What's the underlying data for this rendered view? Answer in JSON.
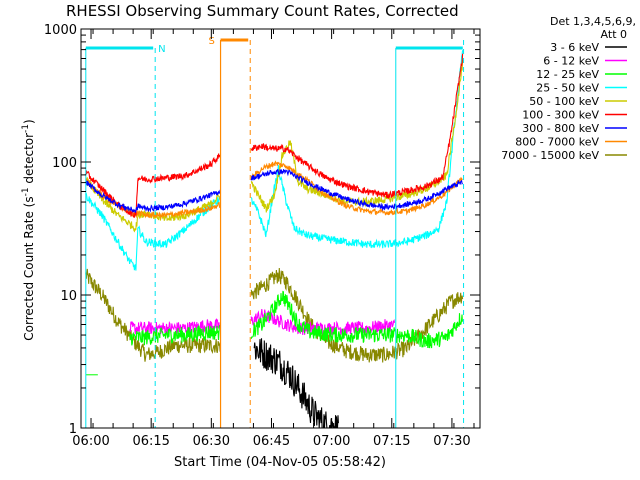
{
  "chart_data": {
    "type": "line",
    "title": "RHESSI Observing Summary Count Rates, Corrected",
    "xlabel": "Start Time (04-Nov-05 05:58:42)",
    "ylabel_main": "Corrected Count Rate (s",
    "ylabel_sup1": "-1",
    "ylabel_mid": " detector",
    "ylabel_sup2": "-1",
    "ylabel_end": ")",
    "x_range_min": [
      -1.2,
      38.3
    ],
    "y_scale": "log",
    "y_range": [
      1,
      1000
    ],
    "x_ticks": [
      {
        "t": 1.3,
        "label": "06:00"
      },
      {
        "t": 16.3,
        "label": "06:15"
      },
      {
        "t": 31.3,
        "label": "06:30"
      },
      {
        "t": 46.3,
        "label": "06:45"
      },
      {
        "t": 61.3,
        "label": "07:00"
      },
      {
        "t": 76.3,
        "label": "07:15"
      },
      {
        "t": 91.3,
        "label": "07:30"
      }
    ],
    "y_ticks": [
      {
        "v": 1,
        "label": "1"
      },
      {
        "v": 10,
        "label": "10"
      },
      {
        "v": 100,
        "label": "100"
      },
      {
        "v": 1000,
        "label": "1000"
      }
    ],
    "legend_header": [
      "Det 1,3,4,5,6,9,",
      "Att 0"
    ],
    "legend_position": "right",
    "series": [
      {
        "name": "3 - 6 keV",
        "color": "#000000"
      },
      {
        "name": "6 - 12 keV",
        "color": "#ff00ff"
      },
      {
        "name": "12 - 25 keV",
        "color": "#00ff00"
      },
      {
        "name": "25 - 50 keV",
        "color": "#00ffff"
      },
      {
        "name": "50 - 100 keV",
        "color": "#cccc00"
      },
      {
        "name": "100 - 300 keV",
        "color": "#ff0000"
      },
      {
        "name": "300 - 800 keV",
        "color": "#0000ff"
      },
      {
        "name": "800 - 7000 keV",
        "color": "#ff8800"
      },
      {
        "name": "7000 - 15000 keV",
        "color": "#888800"
      }
    ],
    "segments": [
      {
        "t0": 0.0,
        "t1": 33.5,
        "night_end": 17.3
      },
      {
        "t0": 41.2,
        "t1": 94.0,
        "night_start": 77.3
      }
    ],
    "profiles": {
      "cyan": [
        [
          0,
          1.75
        ],
        [
          4,
          1.6
        ],
        [
          8,
          1.4
        ],
        [
          11,
          1.25
        ],
        [
          12.5,
          1.2
        ],
        [
          13,
          1.5
        ],
        [
          15,
          1.4
        ],
        [
          20,
          1.38
        ],
        [
          25,
          1.5
        ],
        [
          31,
          1.67
        ],
        [
          33.5,
          1.72
        ],
        [
          41.2,
          1.72
        ],
        [
          43,
          1.62
        ],
        [
          45,
          1.45
        ],
        [
          46.5,
          1.72
        ],
        [
          48,
          1.95
        ],
        [
          50,
          1.7
        ],
        [
          52,
          1.5
        ],
        [
          55,
          1.45
        ],
        [
          60,
          1.42
        ],
        [
          65,
          1.4
        ],
        [
          70,
          1.38
        ],
        [
          75,
          1.38
        ],
        [
          80,
          1.4
        ],
        [
          85,
          1.45
        ],
        [
          88,
          1.5
        ],
        [
          90,
          1.7
        ],
        [
          92,
          2.3
        ],
        [
          94,
          2.85
        ]
      ],
      "yellow": [
        [
          0,
          1.87
        ],
        [
          4,
          1.72
        ],
        [
          8,
          1.6
        ],
        [
          12.5,
          1.5
        ],
        [
          13,
          1.6
        ],
        [
          15,
          1.62
        ],
        [
          20,
          1.57
        ],
        [
          25,
          1.6
        ],
        [
          31,
          1.68
        ],
        [
          33.5,
          1.75
        ],
        [
          41.2,
          1.85
        ],
        [
          43,
          1.75
        ],
        [
          45,
          1.65
        ],
        [
          47,
          1.75
        ],
        [
          49,
          2.05
        ],
        [
          51,
          2.15
        ],
        [
          53,
          1.85
        ],
        [
          55,
          1.8
        ],
        [
          60,
          1.75
        ],
        [
          65,
          1.7
        ],
        [
          70,
          1.7
        ],
        [
          75,
          1.72
        ],
        [
          80,
          1.75
        ],
        [
          85,
          1.8
        ],
        [
          88,
          1.85
        ],
        [
          90,
          1.9
        ],
        [
          92,
          2.3
        ],
        [
          94,
          2.75
        ]
      ],
      "red": [
        [
          0,
          1.92
        ],
        [
          4,
          1.8
        ],
        [
          8,
          1.68
        ],
        [
          12,
          1.6
        ],
        [
          12.5,
          1.62
        ],
        [
          13,
          1.88
        ],
        [
          15,
          1.87
        ],
        [
          20,
          1.88
        ],
        [
          25,
          1.9
        ],
        [
          31,
          1.98
        ],
        [
          33.5,
          2.05
        ],
        [
          41.2,
          2.1
        ],
        [
          44,
          2.12
        ],
        [
          46,
          2.1
        ],
        [
          50,
          2.1
        ],
        [
          55,
          1.98
        ],
        [
          60,
          1.88
        ],
        [
          65,
          1.82
        ],
        [
          70,
          1.78
        ],
        [
          75,
          1.75
        ],
        [
          80,
          1.78
        ],
        [
          85,
          1.82
        ],
        [
          89,
          1.88
        ],
        [
          91,
          2.2
        ],
        [
          94,
          2.8
        ]
      ],
      "blue": [
        [
          0,
          1.85
        ],
        [
          4,
          1.75
        ],
        [
          8,
          1.68
        ],
        [
          12.5,
          1.63
        ],
        [
          13,
          1.67
        ],
        [
          15,
          1.65
        ],
        [
          20,
          1.66
        ],
        [
          25,
          1.69
        ],
        [
          31,
          1.75
        ],
        [
          33.5,
          1.78
        ],
        [
          41.2,
          1.88
        ],
        [
          44,
          1.9
        ],
        [
          46,
          1.92
        ],
        [
          50,
          1.93
        ],
        [
          55,
          1.85
        ],
        [
          60,
          1.78
        ],
        [
          65,
          1.72
        ],
        [
          70,
          1.68
        ],
        [
          75,
          1.66
        ],
        [
          80,
          1.68
        ],
        [
          85,
          1.72
        ],
        [
          90,
          1.8
        ],
        [
          94,
          1.85
        ]
      ],
      "orange": [
        [
          0,
          1.86
        ],
        [
          4,
          1.75
        ],
        [
          8,
          1.67
        ],
        [
          12.5,
          1.6
        ],
        [
          13,
          1.62
        ],
        [
          15,
          1.6
        ],
        [
          20,
          1.6
        ],
        [
          25,
          1.62
        ],
        [
          31,
          1.65
        ],
        [
          33.5,
          1.68
        ],
        [
          41.2,
          1.88
        ],
        [
          44,
          1.95
        ],
        [
          47,
          1.99
        ],
        [
          50,
          1.97
        ],
        [
          55,
          1.87
        ],
        [
          60,
          1.75
        ],
        [
          65,
          1.67
        ],
        [
          70,
          1.63
        ],
        [
          75,
          1.62
        ],
        [
          80,
          1.63
        ],
        [
          85,
          1.68
        ],
        [
          89,
          1.75
        ],
        [
          94,
          1.88
        ]
      ],
      "olive": [
        [
          0,
          1.15
        ],
        [
          4,
          1.0
        ],
        [
          8,
          0.8
        ],
        [
          12,
          0.65
        ],
        [
          15,
          0.55
        ],
        [
          18,
          0.57
        ],
        [
          22,
          0.62
        ],
        [
          26,
          0.62
        ],
        [
          30,
          0.62
        ],
        [
          33.5,
          0.62
        ],
        [
          41.2,
          1.0
        ],
        [
          45,
          1.08
        ],
        [
          48,
          1.15
        ],
        [
          50,
          1.1
        ],
        [
          53,
          0.95
        ],
        [
          56,
          0.78
        ],
        [
          60,
          0.65
        ],
        [
          65,
          0.58
        ],
        [
          70,
          0.55
        ],
        [
          75,
          0.55
        ],
        [
          80,
          0.6
        ],
        [
          84,
          0.72
        ],
        [
          88,
          0.85
        ],
        [
          91,
          0.95
        ],
        [
          94,
          1.0
        ]
      ],
      "green": [
        [
          11,
          0.68
        ],
        [
          15,
          0.68
        ],
        [
          20,
          0.7
        ],
        [
          25,
          0.7
        ],
        [
          30,
          0.72
        ],
        [
          33.5,
          0.72
        ],
        [
          41.2,
          0.72
        ],
        [
          44,
          0.78
        ],
        [
          47,
          0.9
        ],
        [
          49,
          1.0
        ],
        [
          51,
          0.9
        ],
        [
          53,
          0.78
        ],
        [
          56,
          0.72
        ],
        [
          62,
          0.7
        ],
        [
          70,
          0.7
        ],
        [
          75,
          0.7
        ],
        [
          80,
          0.7
        ],
        [
          85,
          0.65
        ],
        [
          90,
          0.68
        ],
        [
          94,
          0.85
        ]
      ],
      "magenta": [
        [
          11,
          0.75
        ],
        [
          15,
          0.75
        ],
        [
          20,
          0.75
        ],
        [
          25,
          0.75
        ],
        [
          30,
          0.77
        ],
        [
          33.5,
          0.77
        ],
        [
          41.2,
          0.8
        ],
        [
          44,
          0.85
        ],
        [
          47,
          0.82
        ],
        [
          50,
          0.78
        ],
        [
          53,
          0.75
        ],
        [
          56,
          0.75
        ],
        [
          62,
          0.75
        ],
        [
          70,
          0.75
        ],
        [
          75,
          0.77
        ],
        [
          77,
          0.77
        ]
      ],
      "black": [
        [
          42,
          0.6
        ],
        [
          45,
          0.55
        ],
        [
          48,
          0.5
        ],
        [
          51,
          0.4
        ],
        [
          54,
          0.25
        ],
        [
          57,
          0.1
        ],
        [
          60,
          0.02
        ],
        [
          63,
          0.0
        ]
      ]
    },
    "annotations": {
      "N_label": "N",
      "S_label": "S"
    }
  }
}
